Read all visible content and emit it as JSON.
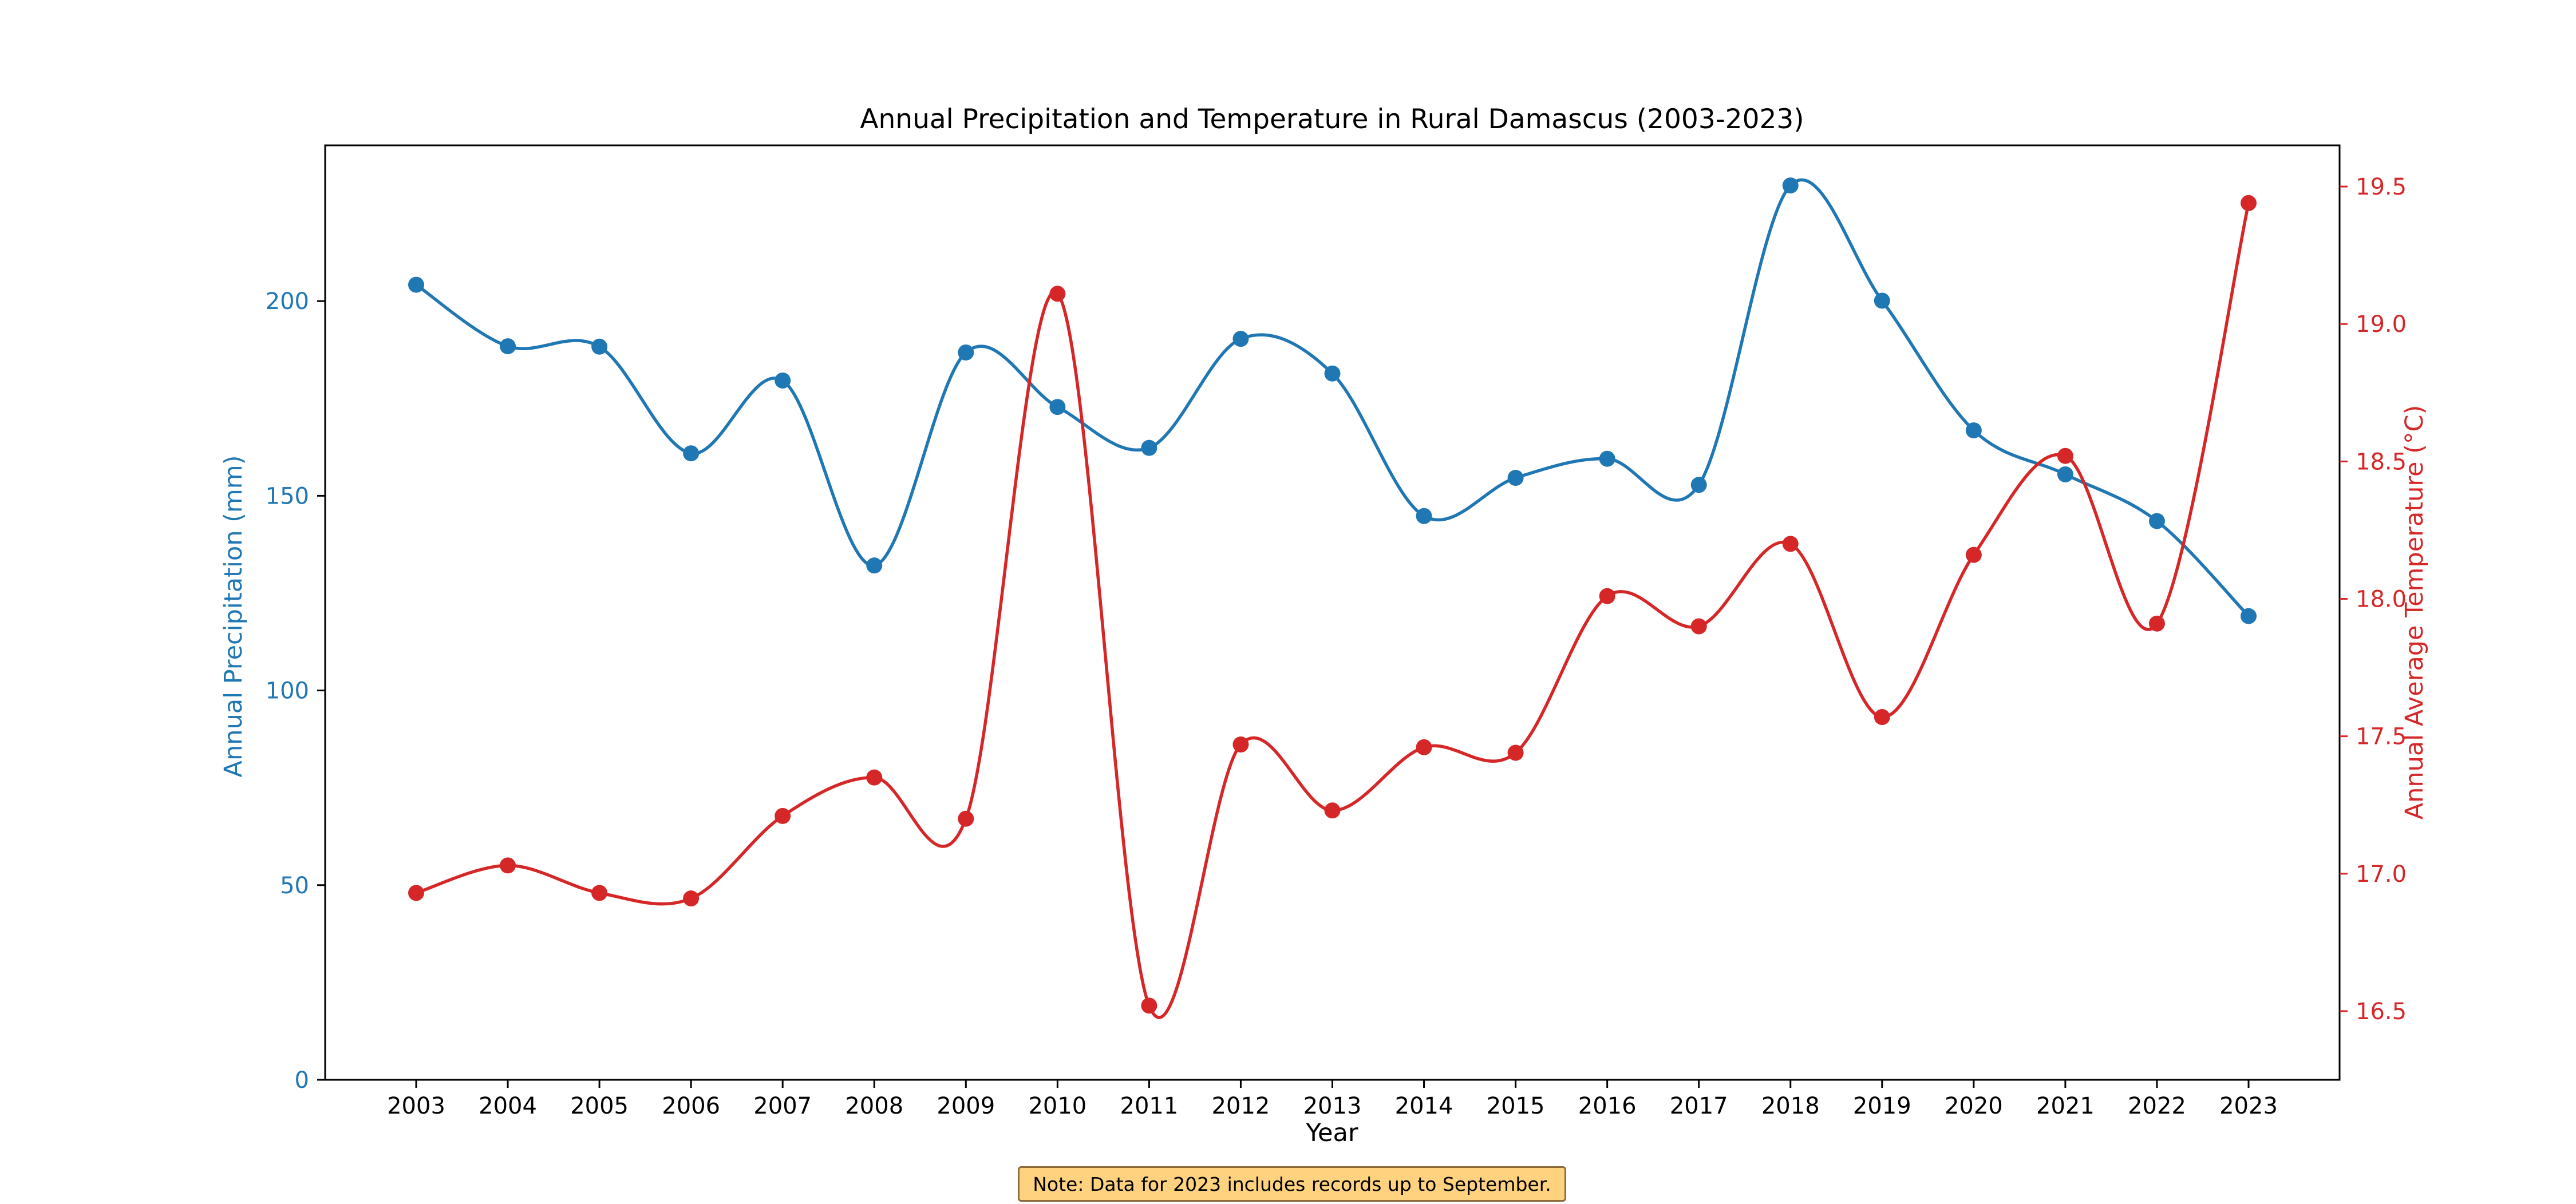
{
  "colors": {
    "precip": "#1f77b4",
    "temp": "#d62728",
    "note_bg": "#fed27e",
    "note_border": "#8c6a37"
  },
  "chart_data": {
    "type": "line",
    "title": "Annual Precipitation and Temperature in Rural Damascus (2003-2023)",
    "xlabel": "Year",
    "ylabel_left": "Annual Precipitation (mm)",
    "ylabel_right": "Annual Average Temperature (°C)",
    "x": [
      "2003",
      "2004",
      "2005",
      "2006",
      "2007",
      "2008",
      "2009",
      "2010",
      "2011",
      "2012",
      "2013",
      "2014",
      "2015",
      "2016",
      "2017",
      "2018",
      "2019",
      "2020",
      "2021",
      "2022",
      "2023"
    ],
    "series": [
      {
        "name": "Annual Precipitation (mm)",
        "axis": "left",
        "color": "#1f77b4",
        "values": [
          204.2,
          188.4,
          188.3,
          160.9,
          179.6,
          132.1,
          186.8,
          172.8,
          162.3,
          190.3,
          181.4,
          144.8,
          154.6,
          159.5,
          152.8,
          229.7,
          200.1,
          166.8,
          155.5,
          143.5,
          119.1
        ]
      },
      {
        "name": "Annual Average Temperature (°C)",
        "axis": "right",
        "color": "#d62728",
        "values": [
          16.93,
          17.03,
          16.93,
          16.91,
          17.21,
          17.35,
          17.2,
          19.11,
          16.52,
          17.47,
          17.23,
          17.46,
          17.44,
          18.01,
          17.9,
          18.2,
          17.57,
          18.16,
          18.52,
          17.91,
          19.44
        ]
      }
    ],
    "ylim_left": [
      0,
      240
    ],
    "yticks_left": [
      0,
      50,
      100,
      150,
      200
    ],
    "ylim_right": [
      16.25,
      19.65
    ],
    "yticks_right": [
      16.5,
      17.0,
      17.5,
      18.0,
      18.5,
      19.0,
      19.5
    ],
    "ytick_labels_right": [
      "16.5",
      "17.0",
      "17.5",
      "18.0",
      "18.5",
      "19.0",
      "19.5"
    ],
    "grid": false,
    "smoothed_lines": true,
    "note": "Note: Data for 2023 includes records up to September."
  }
}
